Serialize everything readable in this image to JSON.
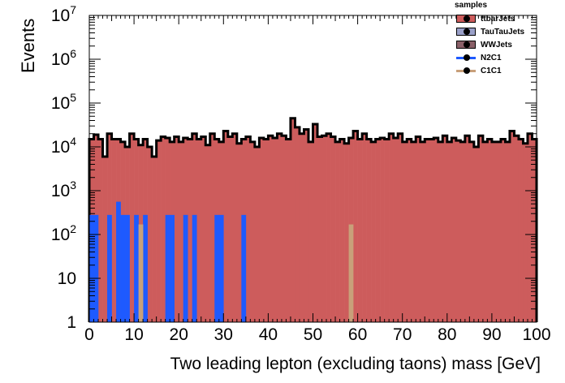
{
  "chart_data": {
    "type": "bar",
    "ylabel": "Events",
    "xlabel": "Two leading lepton (excluding taons) mass [GeV]",
    "xlim": [
      0,
      100
    ],
    "ylim": [
      1,
      10000000
    ],
    "yscale": "log",
    "bin_width": 1,
    "x_ticks": [
      "0",
      "10",
      "20",
      "30",
      "40",
      "50",
      "60",
      "70",
      "80",
      "90",
      "100"
    ],
    "y_ticks": [
      {
        "base": "1",
        "exp": ""
      },
      {
        "base": "10",
        "exp": ""
      },
      {
        "base": "10",
        "exp": "2"
      },
      {
        "base": "10",
        "exp": "3"
      },
      {
        "base": "10",
        "exp": "4"
      },
      {
        "base": "10",
        "exp": "5"
      },
      {
        "base": "10",
        "exp": "6"
      },
      {
        "base": "10",
        "exp": "7"
      }
    ],
    "legend": {
      "title": "samples",
      "placement": "top-right",
      "entries": [
        {
          "label": "ttbarJets",
          "color": "#cd5c5c",
          "style": "fill"
        },
        {
          "label": "TauTauJets",
          "color": "#9aa0c8",
          "style": "fill"
        },
        {
          "label": "WWJets",
          "color": "#8a6068",
          "style": "fill"
        },
        {
          "label": "N2C1",
          "color": "#1e5aff",
          "style": "line"
        },
        {
          "label": "C1C1",
          "color": "#c8a07a",
          "style": "line"
        }
      ]
    },
    "series": [
      {
        "name": "ttbarJets",
        "color": "#cd5c5c",
        "values": [
          15000,
          19000,
          15000,
          6000,
          20000,
          15000,
          15000,
          13000,
          10000,
          20000,
          15000,
          11000,
          15000,
          10000,
          6000,
          14000,
          17000,
          16000,
          13000,
          17000,
          13000,
          16000,
          15000,
          20000,
          15000,
          17000,
          11000,
          20000,
          15000,
          13000,
          23000,
          17000,
          20000,
          12000,
          15000,
          17000,
          13000,
          10000,
          16000,
          15000,
          18000,
          16000,
          20000,
          18000,
          15000,
          45000,
          28000,
          20000,
          25000,
          13000,
          33000,
          17000,
          18000,
          20000,
          17000,
          13000,
          15000,
          12000,
          16000,
          23000,
          15000,
          20000,
          15000,
          13000,
          15000,
          16000,
          15000,
          20000,
          16000,
          20000,
          13000,
          15000,
          13000,
          17000,
          13000,
          15000,
          15000,
          16000,
          13000,
          18000,
          13000,
          16000,
          14000,
          13000,
          18000,
          13000,
          10000,
          18000,
          13000,
          15000,
          13000,
          13000,
          15000,
          13000,
          23000,
          18000,
          15000,
          12000,
          20000,
          15000
        ]
      },
      {
        "name": "N2C1",
        "color": "#1e5aff",
        "values": [
          280,
          280,
          0,
          0,
          280,
          0,
          560,
          280,
          280,
          0,
          280,
          0,
          280,
          0,
          0,
          0,
          0,
          280,
          280,
          0,
          0,
          280,
          0,
          280,
          0,
          0,
          0,
          0,
          280,
          280,
          0,
          0,
          0,
          0,
          280,
          0,
          0,
          0,
          0,
          0,
          0,
          0,
          0,
          0,
          0,
          0,
          0,
          0,
          0,
          0,
          0,
          0,
          0,
          0,
          0,
          0,
          0,
          0,
          0,
          0,
          0,
          0,
          0,
          0,
          0,
          0,
          0,
          0,
          0,
          0,
          0,
          0,
          0,
          0,
          0,
          0,
          0,
          0,
          0,
          0,
          0,
          0,
          0,
          0,
          0,
          0,
          0,
          0,
          0,
          0,
          0,
          0,
          0,
          0,
          0,
          0,
          0,
          0,
          0,
          0
        ]
      },
      {
        "name": "C1C1",
        "color": "#c8a07a",
        "values": [
          0,
          0,
          0,
          0,
          0,
          0,
          0,
          0,
          0,
          0,
          0,
          170,
          0,
          0,
          0,
          0,
          0,
          0,
          0,
          0,
          0,
          0,
          0,
          0,
          0,
          0,
          0,
          0,
          0,
          0,
          0,
          0,
          0,
          0,
          0,
          0,
          0,
          0,
          0,
          0,
          0,
          0,
          0,
          0,
          0,
          0,
          0,
          0,
          0,
          0,
          0,
          0,
          0,
          0,
          0,
          0,
          0,
          0,
          170,
          0,
          0,
          0,
          0,
          0,
          0,
          0,
          0,
          0,
          0,
          0,
          0,
          0,
          0,
          0,
          0,
          0,
          0,
          0,
          0,
          0,
          0,
          0,
          0,
          0,
          0,
          0,
          0,
          0,
          0,
          0,
          0,
          0,
          0,
          0,
          0,
          0,
          0,
          0,
          0,
          0
        ]
      }
    ]
  }
}
